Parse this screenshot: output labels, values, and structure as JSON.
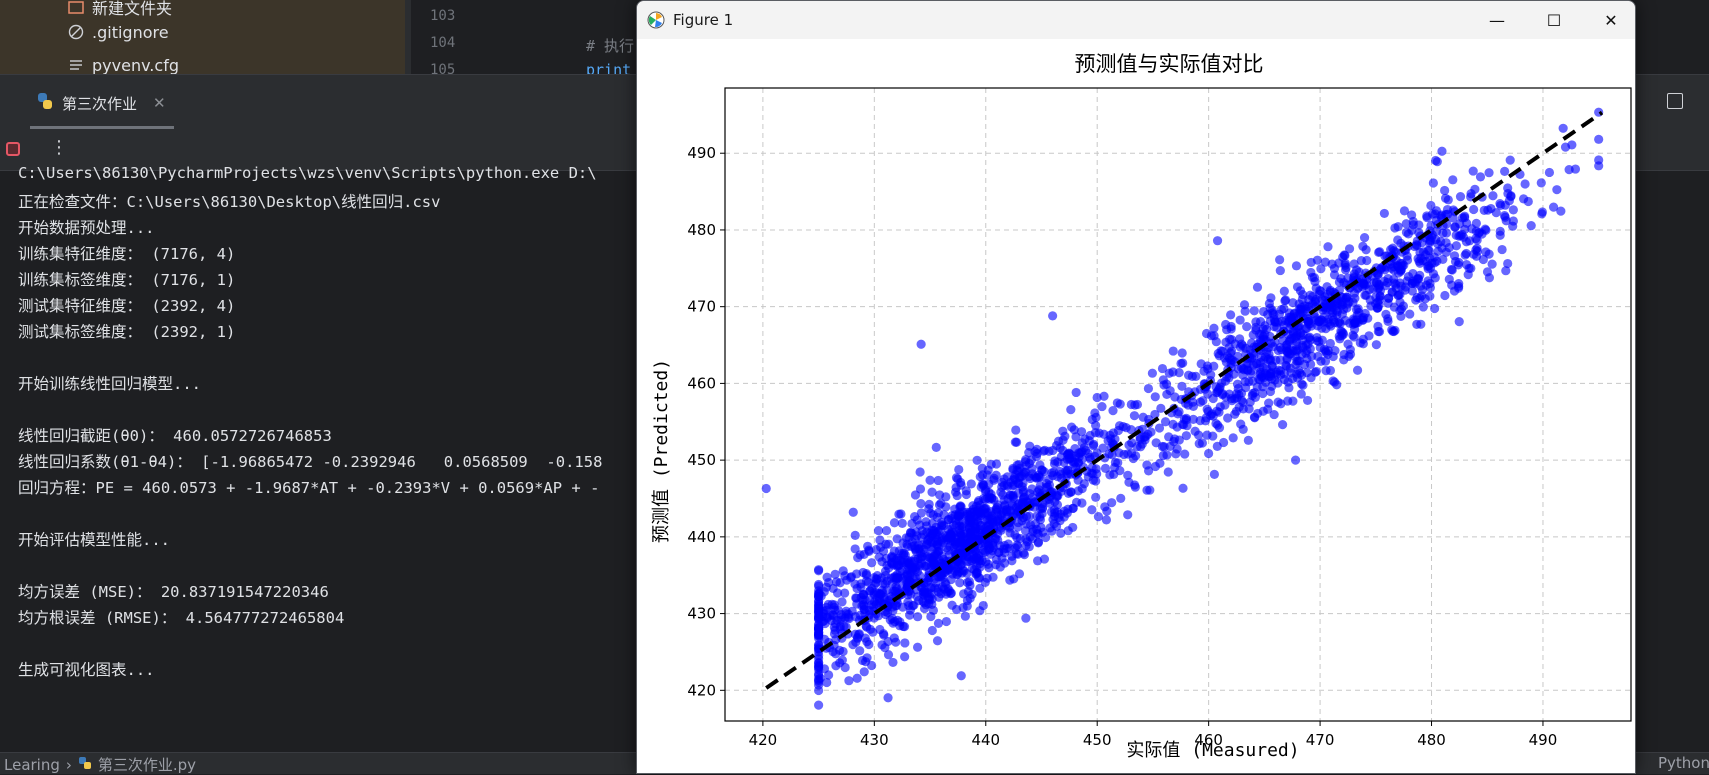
{
  "project_tree": {
    "items": [
      {
        "label": "新建文件夹",
        "icon": "folder-icon"
      },
      {
        "label": ".gitignore",
        "icon": "ignore-file-icon"
      },
      {
        "label": "pyvenv.cfg",
        "icon": "text-file-icon"
      }
    ]
  },
  "editor": {
    "line_numbers": [
      "103",
      "104",
      "105"
    ],
    "code_lines": [
      "",
      "# 执行",
      "print"
    ]
  },
  "run_panel": {
    "tab_label": "第三次作业",
    "console_lines": [
      "C:\\Users\\86130\\PycharmProjects\\wzs\\venv\\Scripts\\python.exe D:\\",
      "正在检查文件：C:\\Users\\86130\\Desktop\\线性回归.csv",
      "开始数据预处理...",
      "训练集特征维度： (7176, 4)",
      "训练集标签维度： (7176, 1)",
      "测试集特征维度： (2392, 4)",
      "测试集标签维度： (2392, 1)",
      "",
      "开始训练线性回归模型...",
      "",
      "线性回归截距(θ0)： 460.0572726746853",
      "线性回归系数(θ1-θ4)： [-1.96865472 -0.2392946   0.0568509  -0.158",
      "回归方程：PE = 460.0573 + -1.9687*AT + -0.2393*V + 0.0569*AP + -",
      "",
      "开始评估模型性能...",
      "",
      "均方误差 (MSE)： 20.837191547220346",
      "均方根误差 (RMSE)： 4.564777272465804",
      "",
      "生成可视化图表..."
    ]
  },
  "status_bar": {
    "breadcrumb_project": "Learing",
    "breadcrumb_file": "第三次作业.py",
    "right_text": "Python"
  },
  "figure_window": {
    "title": "Figure 1",
    "controls": {
      "minimize": "—",
      "maximize": "☐",
      "close": "✕"
    }
  },
  "chart_data": {
    "type": "scatter",
    "title": "预测值与实际值对比",
    "xlabel": "实际值 (Measured)",
    "ylabel": "预测值 (Predicted)",
    "xlim": [
      416.6,
      497.9
    ],
    "ylim": [
      416.0,
      498.5
    ],
    "xticks": [
      420,
      430,
      440,
      450,
      460,
      470,
      480,
      490
    ],
    "yticks": [
      420,
      430,
      440,
      450,
      460,
      470,
      480,
      490
    ],
    "grid": true,
    "point_color": "#0000ff",
    "point_alpha": 0.6,
    "n_points": 2392,
    "ideal_line": {
      "x": [
        420.3,
        495.3
      ],
      "y": [
        420.3,
        495.3
      ],
      "style": "dashed",
      "color": "#000000"
    },
    "outliers": [
      {
        "x": 420.3,
        "y": 446.3
      },
      {
        "x": 434.2,
        "y": 465.1
      },
      {
        "x": 446.0,
        "y": 468.8
      },
      {
        "x": 467.8,
        "y": 450.0
      },
      {
        "x": 460.8,
        "y": 478.6
      },
      {
        "x": 437.8,
        "y": 421.9
      },
      {
        "x": 443.6,
        "y": 429.4
      }
    ],
    "fit": {
      "intercept": 46.5,
      "slope": 0.897,
      "noise_sd": 3.8,
      "x_min": 425.0,
      "x_max": 495.0
    }
  }
}
